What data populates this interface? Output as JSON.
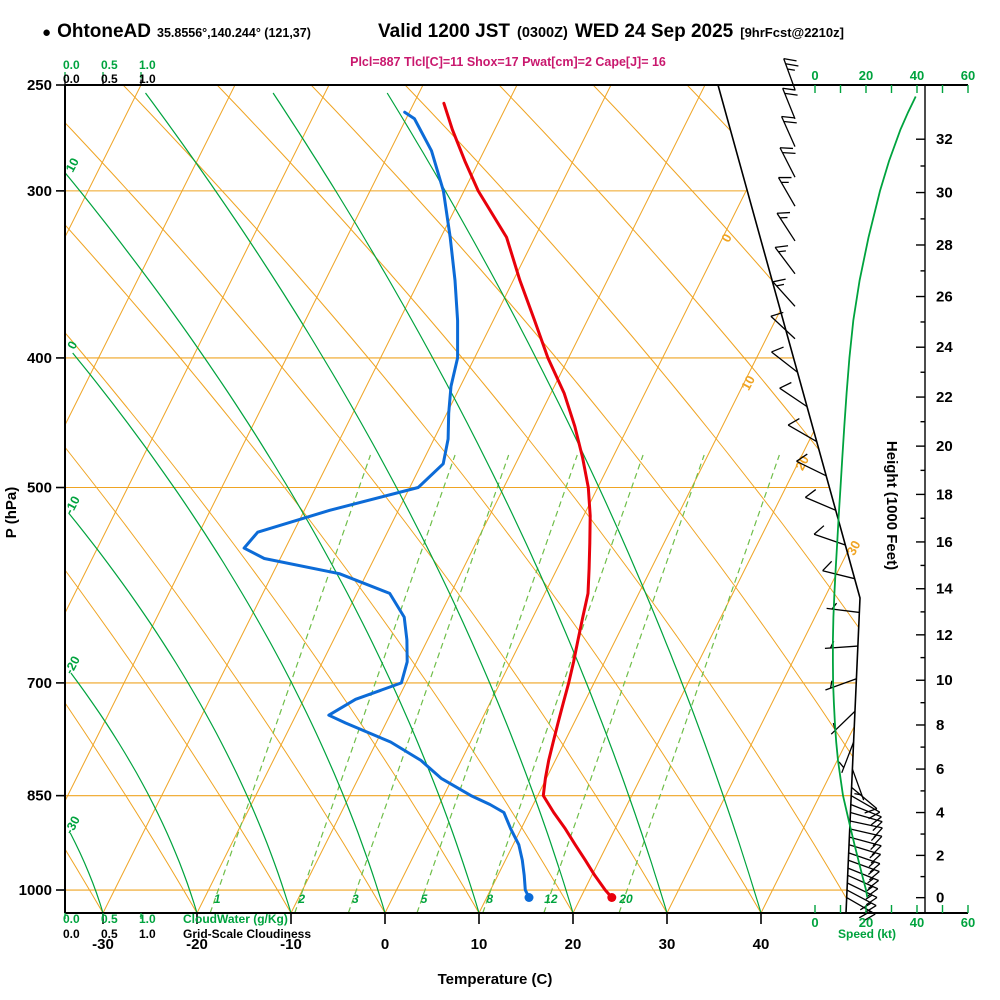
{
  "header": {
    "bullet": "●",
    "station_name": "OhtoneAD",
    "station_coords": "35.8556°,140.244° (121,37)",
    "valid_label": "Valid 1200 JST",
    "valid_zulu": "(0300Z)",
    "valid_date": "WED 24 Sep 2025",
    "forecast_note": "[9hrFcst@2210z]",
    "indices_line": "Plcl=887 Tlcl[C]=11 Shox=17 Pwat[cm]=2 Cape[J]= 16"
  },
  "axes": {
    "pressure": {
      "title": "P (hPa)",
      "ticks": [
        250,
        300,
        400,
        500,
        700,
        850,
        1000
      ]
    },
    "temperature": {
      "title": "Temperature (C)",
      "ticks": [
        -30,
        -20,
        -10,
        0,
        10,
        20,
        30,
        40
      ]
    },
    "height": {
      "title": "Height (1000 Feet)",
      "ticks": [
        0,
        2,
        4,
        6,
        8,
        10,
        12,
        14,
        16,
        18,
        20,
        22,
        24,
        26,
        28,
        30,
        32
      ]
    },
    "speed": {
      "title": "Speed (kt)",
      "ticks": [
        0,
        20,
        40,
        60
      ]
    },
    "cloudwater": {
      "scale": [
        "0.0",
        "0.5",
        "1.0"
      ],
      "green_label": "CloudWater (g/Kg)",
      "black_label": "Grid-Scale Cloudiness"
    }
  },
  "grid_labels": {
    "mixing_ratio_g_kg": [
      1,
      2,
      3,
      5,
      8,
      12,
      20
    ],
    "moist_adiabat_c": [
      10,
      0,
      -10,
      -20,
      -30
    ],
    "isotherm_c": [
      0,
      10,
      20,
      30
    ]
  },
  "colors": {
    "grid_orange": "#EFA423",
    "green": "#00A33E",
    "green_dash": "#6FBE49",
    "temperature_red": "#E8000B",
    "dewpoint_blue": "#0C6BD7",
    "indices_magenta": "#C9186E",
    "black": "#000000"
  },
  "chart_data": {
    "type": "line",
    "chart_kind": "skew-t-log-p-atmospheric-sounding",
    "title": "OhtoneAD sounding valid 1200 JST (0300Z) WED 24 Sep 2025, 9hr forecast from 2210Z",
    "x_axis": {
      "label": "Temperature (C)",
      "range_c": [
        -35,
        45
      ],
      "skewed": true
    },
    "y_axis": {
      "label": "P (hPa)",
      "scale": "log",
      "range_hpa": [
        1040,
        250
      ]
    },
    "y2_axis": {
      "label": "Height (1000 Feet)",
      "range_kft": [
        0,
        32
      ]
    },
    "indices": {
      "Plcl": 887,
      "Tlcl_C": 11,
      "Shox": 17,
      "Pwat_cm": 2,
      "Cape_J": 16
    },
    "series": [
      {
        "name": "temperature",
        "color_key": "temperature_red",
        "points_p_c": [
          [
            1013,
            23.3
          ],
          [
            1000,
            22.2
          ],
          [
            975,
            20.3
          ],
          [
            950,
            18.5
          ],
          [
            925,
            16.6
          ],
          [
            900,
            14.7
          ],
          [
            875,
            12.6
          ],
          [
            850,
            10.6
          ],
          [
            825,
            9.9
          ],
          [
            800,
            9.3
          ],
          [
            775,
            8.8
          ],
          [
            750,
            8.3
          ],
          [
            725,
            7.8
          ],
          [
            700,
            7.3
          ],
          [
            675,
            6.7
          ],
          [
            650,
            6.0
          ],
          [
            625,
            5.3
          ],
          [
            600,
            4.6
          ],
          [
            575,
            3.4
          ],
          [
            550,
            2.1
          ],
          [
            525,
            0.7
          ],
          [
            500,
            -1.0
          ],
          [
            475,
            -3.2
          ],
          [
            450,
            -5.7
          ],
          [
            425,
            -8.6
          ],
          [
            400,
            -12.2
          ],
          [
            375,
            -15.6
          ],
          [
            350,
            -19.3
          ],
          [
            325,
            -23.0
          ],
          [
            300,
            -28.5
          ],
          [
            285,
            -31.5
          ],
          [
            270,
            -34.5
          ],
          [
            258,
            -36.8
          ]
        ]
      },
      {
        "name": "dewpoint",
        "color_key": "dewpoint_blue",
        "points_p_c": [
          [
            1013,
            14.5
          ],
          [
            1000,
            13.7
          ],
          [
            975,
            12.8
          ],
          [
            950,
            11.8
          ],
          [
            925,
            10.6
          ],
          [
            900,
            8.9
          ],
          [
            875,
            7.3
          ],
          [
            863,
            5.4
          ],
          [
            850,
            2.9
          ],
          [
            825,
            -1.2
          ],
          [
            800,
            -4.3
          ],
          [
            775,
            -8.5
          ],
          [
            750,
            -14.3
          ],
          [
            740,
            -16.5
          ],
          [
            720,
            -14.5
          ],
          [
            700,
            -10.5
          ],
          [
            675,
            -11.0
          ],
          [
            650,
            -12.2
          ],
          [
            625,
            -13.7
          ],
          [
            600,
            -16.5
          ],
          [
            580,
            -22.9
          ],
          [
            565,
            -31.7
          ],
          [
            555,
            -34.4
          ],
          [
            540,
            -33.8
          ],
          [
            520,
            -27.3
          ],
          [
            500,
            -19.1
          ],
          [
            480,
            -17.7
          ],
          [
            460,
            -18.5
          ],
          [
            440,
            -19.8
          ],
          [
            420,
            -21.0
          ],
          [
            400,
            -21.8
          ],
          [
            375,
            -23.8
          ],
          [
            350,
            -26.2
          ],
          [
            325,
            -29.0
          ],
          [
            300,
            -32.2
          ],
          [
            280,
            -35.6
          ],
          [
            265,
            -39.1
          ],
          [
            262,
            -40.5
          ]
        ]
      },
      {
        "name": "wind_speed",
        "color_key": "green",
        "points_p_kt": [
          [
            1013,
            20.5
          ],
          [
            1000,
            20
          ],
          [
            975,
            18.5
          ],
          [
            950,
            17
          ],
          [
            925,
            15.5
          ],
          [
            900,
            14
          ],
          [
            875,
            12.5
          ],
          [
            850,
            11
          ],
          [
            825,
            10
          ],
          [
            800,
            9
          ],
          [
            775,
            8.3
          ],
          [
            750,
            7.8
          ],
          [
            725,
            7.4
          ],
          [
            700,
            7.1
          ],
          [
            675,
            7
          ],
          [
            650,
            7
          ],
          [
            625,
            7.2
          ],
          [
            600,
            7.6
          ],
          [
            575,
            8.1
          ],
          [
            550,
            8.7
          ],
          [
            525,
            9.3
          ],
          [
            500,
            10
          ],
          [
            475,
            10.7
          ],
          [
            450,
            11.5
          ],
          [
            425,
            12.4
          ],
          [
            400,
            13.5
          ],
          [
            375,
            15
          ],
          [
            350,
            17.5
          ],
          [
            325,
            21
          ],
          [
            300,
            25.5
          ],
          [
            285,
            29
          ],
          [
            270,
            33.5
          ],
          [
            262,
            36.5
          ],
          [
            255,
            39.5
          ]
        ]
      }
    ],
    "surface_markers": [
      {
        "name": "surface-temperature",
        "p": 1013,
        "c": 23.3
      },
      {
        "name": "surface-dewpoint",
        "p": 1013,
        "c": 14.5
      }
    ],
    "wind_barbs_p_dir_kt": [
      [
        252,
        340,
        24
      ],
      [
        265,
        338,
        22
      ],
      [
        278,
        336,
        21
      ],
      [
        293,
        333,
        19
      ],
      [
        308,
        330,
        17
      ],
      [
        327,
        327,
        15
      ],
      [
        346,
        323,
        14
      ],
      [
        366,
        318,
        13
      ],
      [
        387,
        313,
        12
      ],
      [
        410,
        308,
        11
      ],
      [
        435,
        304,
        10
      ],
      [
        462,
        300,
        10
      ],
      [
        490,
        296,
        10
      ],
      [
        520,
        293,
        9
      ],
      [
        552,
        289,
        9
      ],
      [
        585,
        284,
        8
      ],
      [
        620,
        277,
        7
      ],
      [
        657,
        266,
        6
      ],
      [
        695,
        250,
        5
      ],
      [
        735,
        226,
        5
      ],
      [
        775,
        201,
        6
      ],
      [
        812,
        160,
        7
      ],
      [
        838,
        130,
        9
      ],
      [
        850,
        120,
        10
      ],
      [
        863,
        112,
        11
      ],
      [
        875,
        106,
        12
      ],
      [
        888,
        102,
        12
      ],
      [
        900,
        103,
        13
      ],
      [
        913,
        105,
        14
      ],
      [
        925,
        107,
        15
      ],
      [
        938,
        109,
        15
      ],
      [
        950,
        110,
        16
      ],
      [
        963,
        112,
        16
      ],
      [
        975,
        114,
        17
      ],
      [
        988,
        116,
        17
      ],
      [
        1000,
        118,
        18
      ],
      [
        1013,
        120,
        18
      ]
    ]
  }
}
